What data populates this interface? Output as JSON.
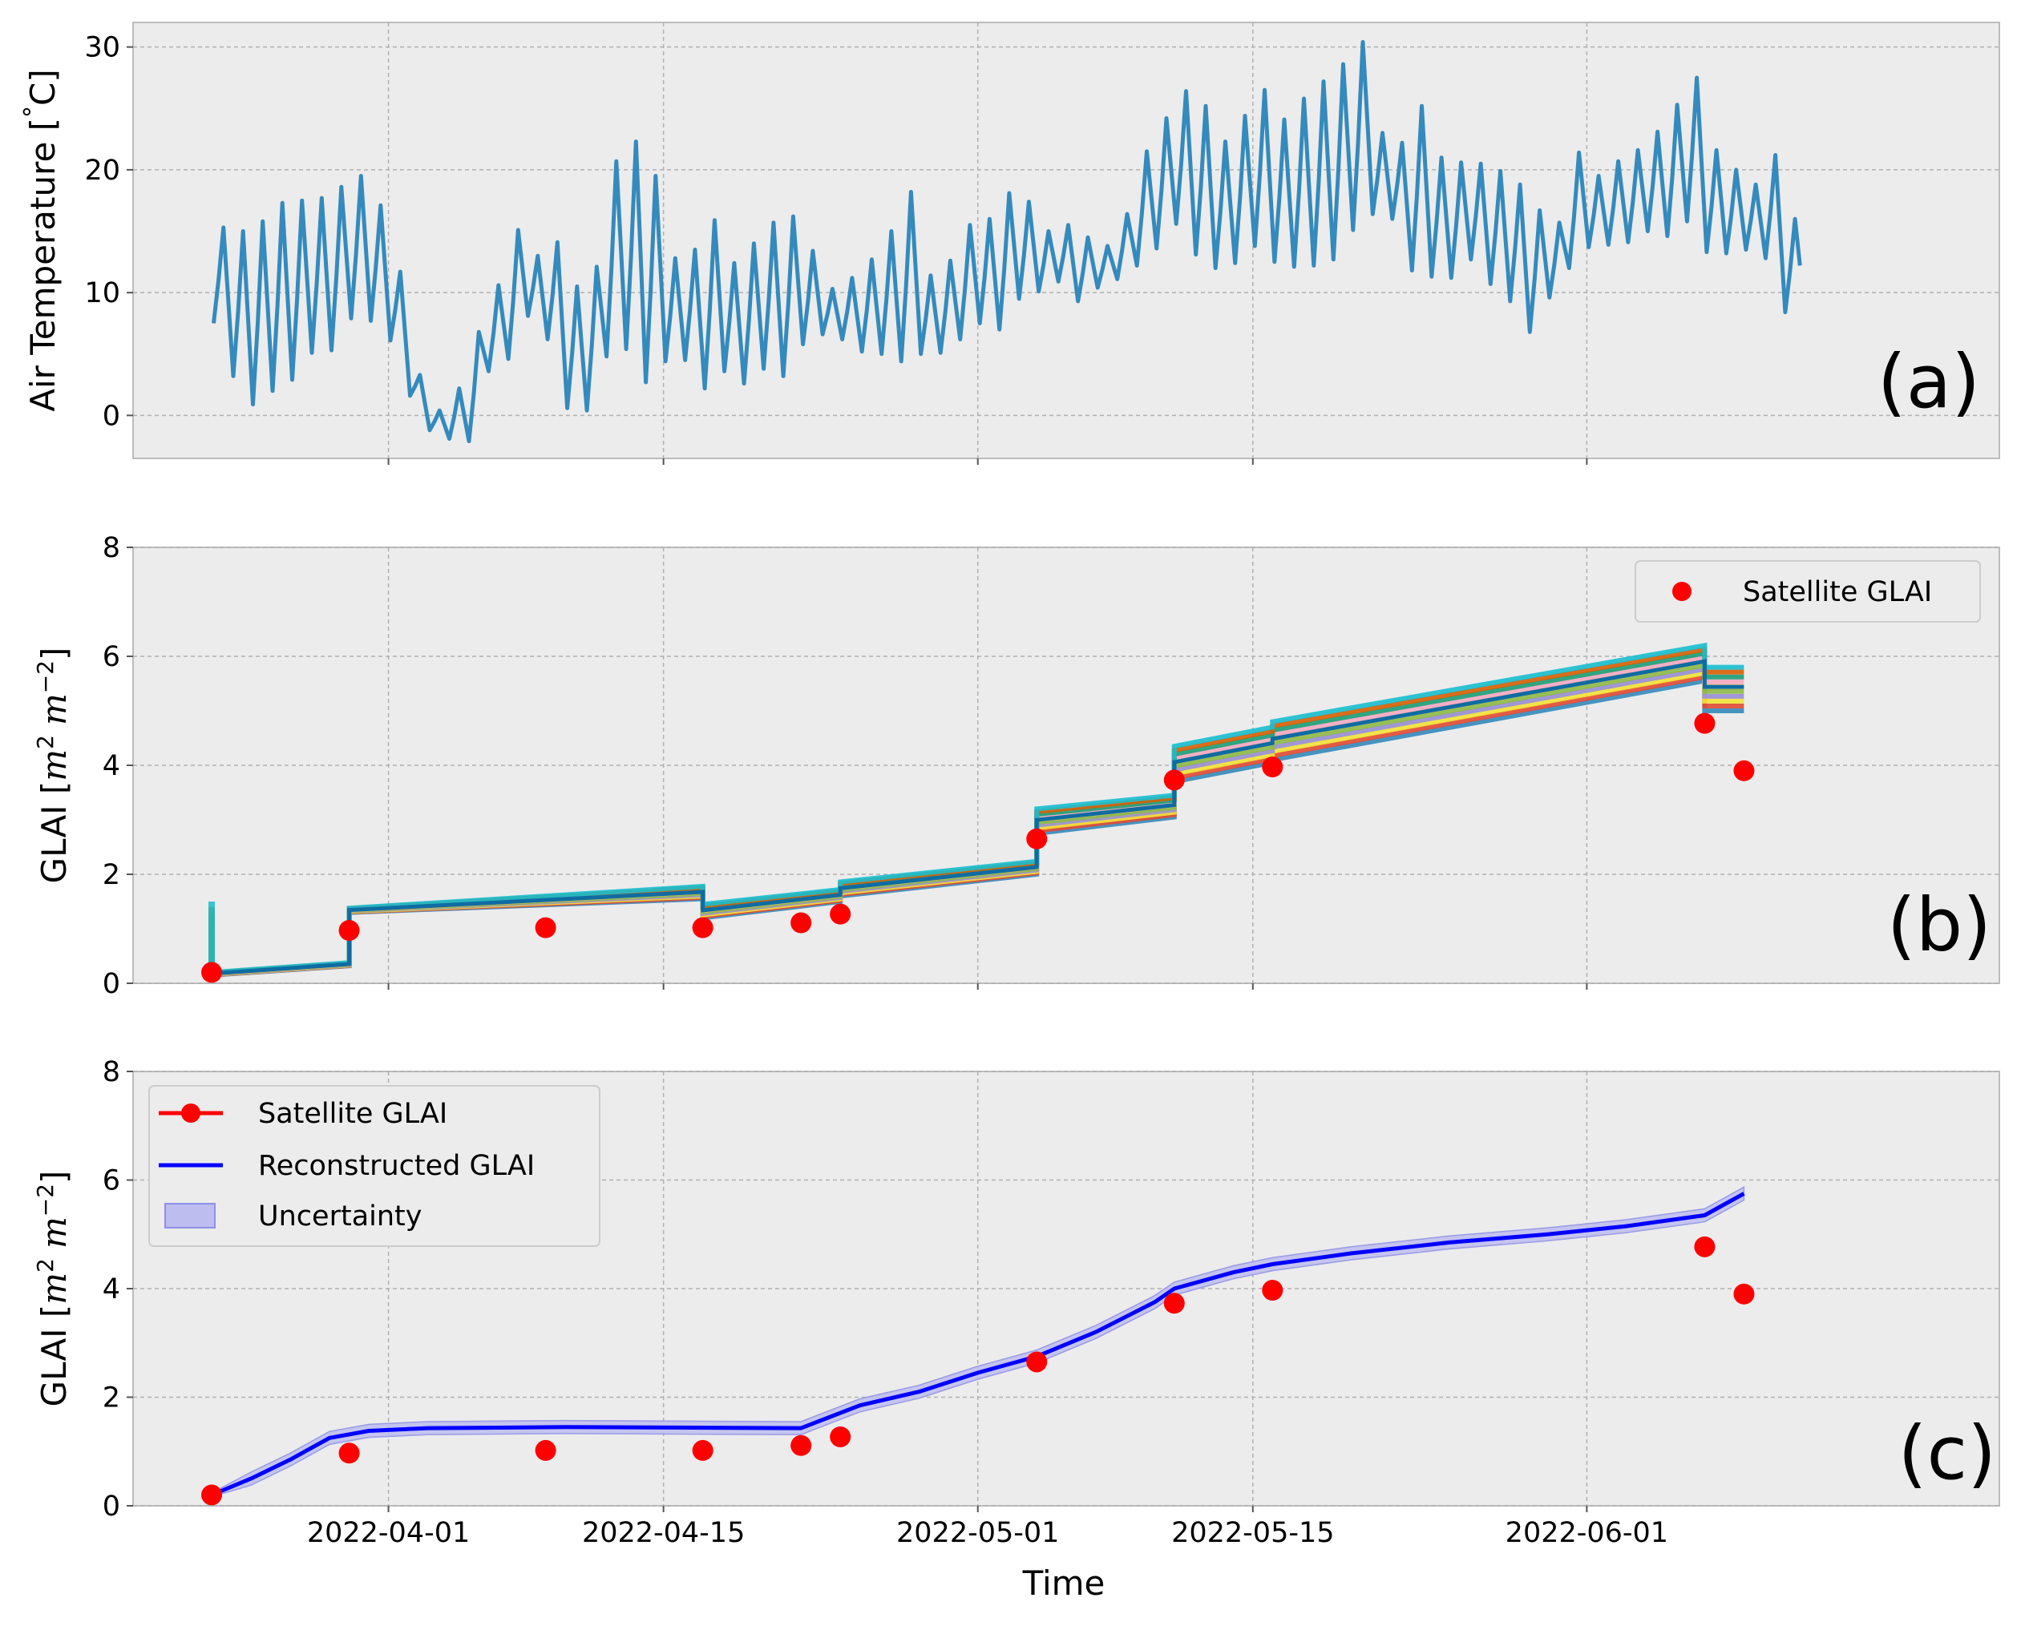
{
  "colors": {
    "panel_bg": "#ececec",
    "grid": "#b0b0b0",
    "spine": "#bcbcbc",
    "temperature": "#348abd",
    "satellite": "#ff0000",
    "reconstructed": "#0000ff",
    "uncertainty_fill": "#bdbdf0",
    "ensemble": [
      "#348abd",
      "#e24a33",
      "#f2e336",
      "#988ed5",
      "#8eba42",
      "#fbc15e",
      "#f5a8c0",
      "#1b9e77",
      "#d95f02",
      "#17becf"
    ],
    "ensemble_top": "#0f6ca3"
  },
  "icons": [
    "red-dot-marker",
    "red-line-dot-marker",
    "blue-line-marker",
    "uncertainty-patch-marker"
  ],
  "x_tick_labels": [
    "2022-04-01",
    "2022-04-15",
    "2022-05-01",
    "2022-05-15",
    "2022-06-01"
  ],
  "x_axis_label": "Time",
  "chart_data": [
    {
      "type": "line",
      "panel_label": "(a)",
      "ylabel": "Air Temperature [$^\\circ$C]",
      "ylabel_text": "Air Temperature [",
      "ylabel_circ": "°",
      "ylabel_unit": "C]",
      "x_range": [
        "2022-03-19",
        "2022-06-22"
      ],
      "ylim": [
        -3.5,
        32
      ],
      "yticks": [
        0,
        10,
        20,
        30
      ],
      "grid": true,
      "series": [
        {
          "x": [
            "2022-03-23",
            "2022-03-24",
            "2022-03-25",
            "2022-03-26",
            "2022-03-27",
            "2022-03-28",
            "2022-03-29",
            "2022-03-30",
            "2022-03-31",
            "2022-04-01",
            "2022-04-02",
            "2022-04-03",
            "2022-04-04",
            "2022-04-05",
            "2022-04-06",
            "2022-04-07",
            "2022-04-08",
            "2022-04-09",
            "2022-04-10",
            "2022-04-11",
            "2022-04-12",
            "2022-04-13",
            "2022-04-14",
            "2022-04-15",
            "2022-04-16",
            "2022-04-17",
            "2022-04-18",
            "2022-04-19",
            "2022-04-20",
            "2022-04-21",
            "2022-04-22",
            "2022-04-23",
            "2022-04-24",
            "2022-04-25",
            "2022-04-26",
            "2022-04-27",
            "2022-04-28",
            "2022-04-29",
            "2022-04-30",
            "2022-05-01",
            "2022-05-02",
            "2022-05-03",
            "2022-05-04",
            "2022-05-05",
            "2022-05-06",
            "2022-05-07",
            "2022-05-08",
            "2022-05-09",
            "2022-05-10",
            "2022-05-11",
            "2022-05-12",
            "2022-05-13",
            "2022-05-14",
            "2022-05-15",
            "2022-05-16",
            "2022-05-17",
            "2022-05-18",
            "2022-05-19",
            "2022-05-20",
            "2022-05-21",
            "2022-05-22",
            "2022-05-23",
            "2022-05-24",
            "2022-05-25",
            "2022-05-26",
            "2022-05-27",
            "2022-05-28",
            "2022-05-29",
            "2022-05-30",
            "2022-05-31",
            "2022-06-01",
            "2022-06-02",
            "2022-06-03",
            "2022-06-04",
            "2022-06-05",
            "2022-06-06",
            "2022-06-07",
            "2022-06-08",
            "2022-06-09",
            "2022-06-10",
            "2022-06-11"
          ],
          "max": [
            15.3,
            15.0,
            15.8,
            17.3,
            17.5,
            17.7,
            18.6,
            19.5,
            17.1,
            11.7,
            3.3,
            0.4,
            2.2,
            6.8,
            10.6,
            15.1,
            13.0,
            14.1,
            10.5,
            12.1,
            20.7,
            22.3,
            19.5,
            12.8,
            13.5,
            15.9,
            12.4,
            14.0,
            15.7,
            16.2,
            13.4,
            10.3,
            11.2,
            12.7,
            15.0,
            18.2,
            11.4,
            12.6,
            15.5,
            16.0,
            18.1,
            17.4,
            15.0,
            15.5,
            14.5,
            13.8,
            16.4,
            21.5,
            24.2,
            26.4,
            25.2,
            22.3,
            24.4,
            26.5,
            24.1,
            25.8,
            27.2,
            28.6,
            30.4,
            23.0,
            22.2,
            25.2,
            21.0,
            20.6,
            20.5,
            19.9,
            18.8,
            16.7,
            15.7,
            21.4,
            19.5,
            20.7,
            21.6,
            23.1,
            25.3,
            27.5,
            21.6,
            20.0,
            18.8,
            21.2,
            16.0
          ],
          "min": [
            7.5,
            3.2,
            0.9,
            2.0,
            2.9,
            5.1,
            5.3,
            7.9,
            7.7,
            6.1,
            1.6,
            -1.2,
            -1.9,
            -2.1,
            3.6,
            4.6,
            8.1,
            6.2,
            0.6,
            0.4,
            4.8,
            5.4,
            2.7,
            4.4,
            4.5,
            2.2,
            3.6,
            2.6,
            3.8,
            3.2,
            5.8,
            6.6,
            6.2,
            5.2,
            5.0,
            4.4,
            5.0,
            5.1,
            6.2,
            7.5,
            7.0,
            9.5,
            10.1,
            10.9,
            9.3,
            10.4,
            11.1,
            12.2,
            13.6,
            15.6,
            13.1,
            12.0,
            12.4,
            13.8,
            12.5,
            12.1,
            12.2,
            12.7,
            15.1,
            16.4,
            16.0,
            11.8,
            11.3,
            11.2,
            12.7,
            10.7,
            9.3,
            6.8,
            9.6,
            12.0,
            13.7,
            13.9,
            14.1,
            15.0,
            14.6,
            15.8,
            13.3,
            13.2,
            13.5,
            12.8,
            8.4
          ]
        }
      ]
    },
    {
      "type": "line",
      "panel_label": "(b)",
      "ylabel": "GLAI [$m^2$ $m^{-2}$]",
      "ylabel_text": "GLAI [",
      "ylabel_m": "m",
      "ylabel_sup2": "2",
      "ylabel_m2": "m",
      "ylabel_supneg": "−2",
      "ylabel_close": "]",
      "x_range": [
        "2022-03-19",
        "2022-06-22"
      ],
      "ylim": [
        0,
        8
      ],
      "yticks": [
        0,
        2,
        4,
        6,
        8
      ],
      "grid": true,
      "legend": {
        "position": "upper right",
        "entries": [
          "Satellite GLAI"
        ]
      },
      "satellite_glai": {
        "name": "Satellite GLAI",
        "x": [
          "2022-03-23",
          "2022-03-30",
          "2022-04-09",
          "2022-04-17",
          "2022-04-22",
          "2022-04-24",
          "2022-05-04",
          "2022-05-11",
          "2022-05-16",
          "2022-06-07",
          "2022-06-09"
        ],
        "y": [
          0.2,
          0.97,
          1.02,
          1.02,
          1.11,
          1.27,
          2.65,
          3.73,
          3.97,
          4.77,
          3.9
        ]
      },
      "ensemble": {
        "description_members": 10,
        "step_dates": [
          "2022-03-23",
          "2022-03-30",
          "2022-04-17",
          "2022-04-24",
          "2022-05-04",
          "2022-05-11",
          "2022-05-16",
          "2022-06-07"
        ],
        "segments": [
          {
            "from": "2022-03-23",
            "to": "2022-03-30",
            "start": [
              0.15,
              0.2
            ],
            "end": [
              0.32,
              0.38
            ]
          },
          {
            "from": "2022-03-30",
            "to": "2022-04-17",
            "start": [
              1.3,
              1.38
            ],
            "end": [
              1.55,
              1.78
            ]
          },
          {
            "from": "2022-04-17",
            "to": "2022-04-24",
            "start": [
              1.2,
              1.45
            ],
            "end": [
              1.5,
              1.72
            ]
          },
          {
            "from": "2022-04-24",
            "to": "2022-05-04",
            "start": [
              1.6,
              1.86
            ],
            "end": [
              2.0,
              2.24
            ]
          },
          {
            "from": "2022-05-04",
            "to": "2022-05-11",
            "start": [
              2.75,
              3.2
            ],
            "end": [
              3.05,
              3.45
            ]
          },
          {
            "from": "2022-05-11",
            "to": "2022-05-16",
            "start": [
              3.7,
              4.35
            ],
            "end": [
              4.05,
              4.7
            ]
          },
          {
            "from": "2022-05-16",
            "to": "2022-06-07",
            "start": [
              4.1,
              4.8
            ],
            "end": [
              5.55,
              6.2
            ]
          },
          {
            "from": "2022-06-07",
            "to": "2022-06-09",
            "start": [
              5.0,
              5.8
            ],
            "end": [
              5.0,
              5.8
            ]
          }
        ],
        "initial_spread": {
          "date": "2022-03-23",
          "range": [
            0.6,
            1.5
          ]
        }
      }
    },
    {
      "type": "line",
      "panel_label": "(c)",
      "ylabel": "GLAI [$m^2$ $m^{-2}$]",
      "ylabel_text": "GLAI [",
      "ylabel_m": "m",
      "ylabel_sup2": "2",
      "ylabel_m2": "m",
      "ylabel_supneg": "−2",
      "ylabel_close": "]",
      "x_range": [
        "2022-03-19",
        "2022-06-22"
      ],
      "ylim": [
        0,
        8
      ],
      "yticks": [
        0,
        2,
        4,
        6,
        8
      ],
      "grid": true,
      "legend": {
        "position": "upper left",
        "entries": [
          "Satellite GLAI",
          "Reconstructed GLAI",
          "Uncertainty"
        ]
      },
      "satellite_glai": {
        "name": "Satellite GLAI",
        "x": [
          "2022-03-23",
          "2022-03-30",
          "2022-04-09",
          "2022-04-17",
          "2022-04-22",
          "2022-04-24",
          "2022-05-04",
          "2022-05-11",
          "2022-05-16",
          "2022-06-07",
          "2022-06-09"
        ],
        "y": [
          0.2,
          0.97,
          1.02,
          1.02,
          1.11,
          1.27,
          2.65,
          3.73,
          3.97,
          4.77,
          3.9
        ]
      },
      "reconstructed_glai": {
        "name": "Reconstructed GLAI",
        "x": [
          "2022-03-23",
          "2022-03-25",
          "2022-03-27",
          "2022-03-29",
          "2022-03-31",
          "2022-04-03",
          "2022-04-10",
          "2022-04-22",
          "2022-04-25",
          "2022-04-28",
          "2022-05-01",
          "2022-05-04",
          "2022-05-07",
          "2022-05-10",
          "2022-05-11",
          "2022-05-14",
          "2022-05-16",
          "2022-05-20",
          "2022-05-25",
          "2022-05-30",
          "2022-06-03",
          "2022-06-07",
          "2022-06-09"
        ],
        "y": [
          0.2,
          0.5,
          0.85,
          1.25,
          1.38,
          1.43,
          1.45,
          1.43,
          1.85,
          2.1,
          2.45,
          2.75,
          3.2,
          3.75,
          4.0,
          4.3,
          4.45,
          4.65,
          4.85,
          5.0,
          5.15,
          5.35,
          5.75
        ]
      },
      "uncertainty_halfwidth": 0.12
    }
  ]
}
